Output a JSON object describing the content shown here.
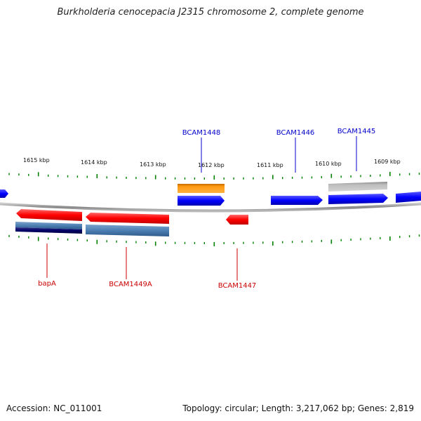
{
  "title": "Burkholderia cenocepacia J2315 chromosome 2, complete genome",
  "scale_labels": [
    "1615 kbp",
    "1614 kbp",
    "1613 kbp",
    "1612 kbp",
    "1611 kbp",
    "1610 kbp",
    "1609 kbp"
  ],
  "genes_top": [
    "BCAM1448",
    "BCAM1446",
    "BCAM1445"
  ],
  "genes_bottom": [
    "bapA",
    "BCAM1449A",
    "BCAM1447"
  ],
  "footer": {
    "accession": "Accession: NC_011001",
    "summary": "Topology: circular; Length: 3,217,062 bp; Genes: 2,819"
  },
  "colors": {
    "forward_gene": "#0000ff",
    "reverse_gene": "#ff0000",
    "label_top": "#0000cc",
    "label_bottom": "#cc0000",
    "tick": "#008000",
    "backbone": "#888888",
    "orange_feature": "#ff9900",
    "steel_feature": "#4d7fb3",
    "navy_feature": "#000066",
    "grey_feature": "#b0b0b0"
  }
}
